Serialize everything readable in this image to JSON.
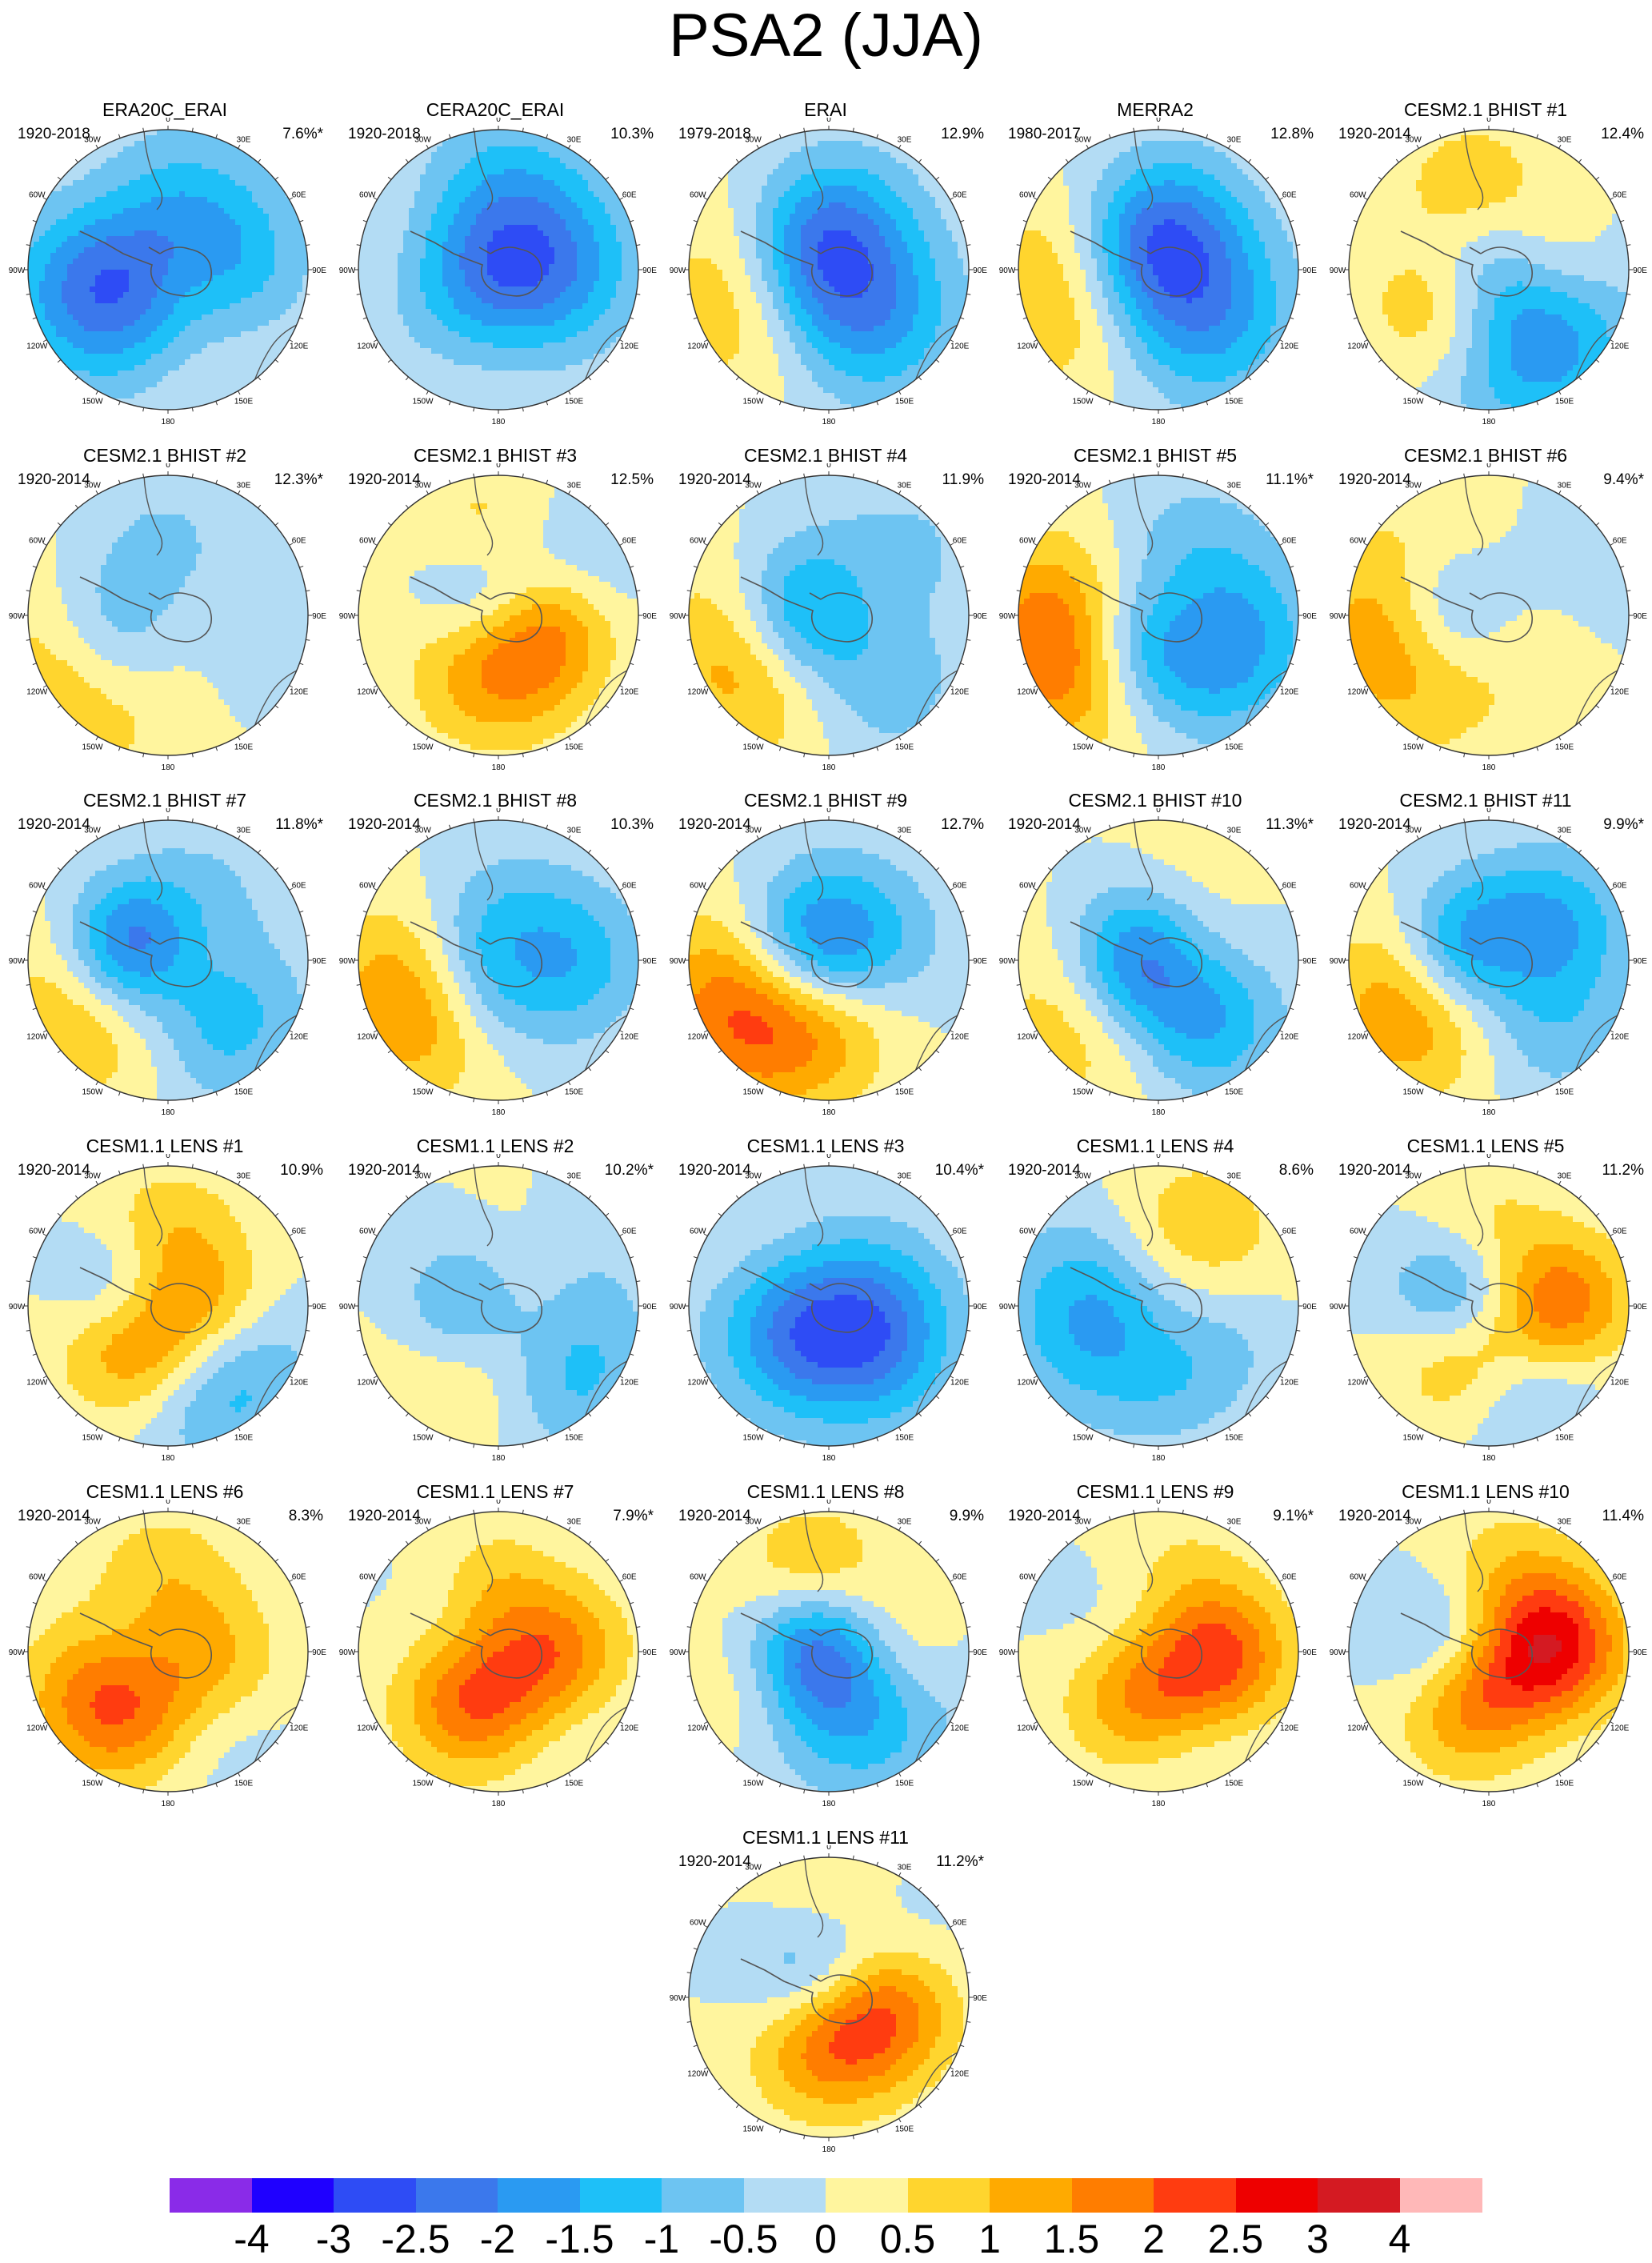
{
  "title": "PSA2 (JJA)",
  "panels": [
    {
      "title": "ERA20C_ERAI",
      "period": "1920-2018",
      "variance": "7.6%*"
    },
    {
      "title": "CERA20C_ERAI",
      "period": "1920-2018",
      "variance": "10.3%"
    },
    {
      "title": "ERAI",
      "period": "1979-2018",
      "variance": "12.9%"
    },
    {
      "title": "MERRA2",
      "period": "1980-2017",
      "variance": "12.8%"
    },
    {
      "title": "CESM2.1 BHIST #1",
      "period": "1920-2014",
      "variance": "12.4%"
    },
    {
      "title": "CESM2.1 BHIST #2",
      "period": "1920-2014",
      "variance": "12.3%*"
    },
    {
      "title": "CESM2.1 BHIST #3",
      "period": "1920-2014",
      "variance": "12.5%"
    },
    {
      "title": "CESM2.1 BHIST #4",
      "period": "1920-2014",
      "variance": "11.9%"
    },
    {
      "title": "CESM2.1 BHIST #5",
      "period": "1920-2014",
      "variance": "11.1%*"
    },
    {
      "title": "CESM2.1 BHIST #6",
      "period": "1920-2014",
      "variance": "9.4%*"
    },
    {
      "title": "CESM2.1 BHIST #7",
      "period": "1920-2014",
      "variance": "11.8%*"
    },
    {
      "title": "CESM2.1 BHIST #8",
      "period": "1920-2014",
      "variance": "10.3%"
    },
    {
      "title": "CESM2.1 BHIST #9",
      "period": "1920-2014",
      "variance": "12.7%"
    },
    {
      "title": "CESM2.1 BHIST #10",
      "period": "1920-2014",
      "variance": "11.3%*"
    },
    {
      "title": "CESM2.1 BHIST #11",
      "period": "1920-2014",
      "variance": "9.9%*"
    },
    {
      "title": "CESM1.1 LENS #1",
      "period": "1920-2014",
      "variance": "10.9%"
    },
    {
      "title": "CESM1.1 LENS #2",
      "period": "1920-2014",
      "variance": "10.2%*"
    },
    {
      "title": "CESM1.1 LENS #3",
      "period": "1920-2014",
      "variance": "10.4%*"
    },
    {
      "title": "CESM1.1 LENS #4",
      "period": "1920-2014",
      "variance": "8.6%"
    },
    {
      "title": "CESM1.1 LENS #5",
      "period": "1920-2014",
      "variance": "11.2%"
    },
    {
      "title": "CESM1.1 LENS #6",
      "period": "1920-2014",
      "variance": "8.3%"
    },
    {
      "title": "CESM1.1 LENS #7",
      "period": "1920-2014",
      "variance": "7.9%*"
    },
    {
      "title": "CESM1.1 LENS #8",
      "period": "1920-2014",
      "variance": "9.9%"
    },
    {
      "title": "CESM1.1 LENS #9",
      "period": "1920-2014",
      "variance": "9.1%*"
    },
    {
      "title": "CESM1.1 LENS #10",
      "period": "1920-2014",
      "variance": "11.4%"
    },
    {
      "title": "CESM1.1 LENS #11",
      "period": "1920-2014",
      "variance": "11.2%*"
    }
  ],
  "map_labels": {
    "lon_0": "0",
    "lon_30w": "30W",
    "lon_30e": "30E",
    "lon_60w": "60W",
    "lon_60e": "60E",
    "lon_90w": "90W",
    "lon_90e": "90E",
    "lon_120w": "120W",
    "lon_120e": "120E",
    "lon_150w": "150W",
    "lon_150e": "150E",
    "lon_180": "180"
  },
  "colorbar": {
    "colors": [
      "#8a2be8",
      "#1f00ff",
      "#2e4cf5",
      "#3b78ec",
      "#2a9af2",
      "#1ec0f8",
      "#6dc4f2",
      "#b3dcf4",
      "#fff59e",
      "#ffd52e",
      "#ffaa00",
      "#ff7d00",
      "#ff3c10",
      "#ee0000",
      "#d41a22",
      "#ffb8b8"
    ],
    "labels": [
      "-4",
      "-3",
      "-2.5",
      "-2",
      "-1.5",
      "-1",
      "-0.5",
      "0",
      "0.5",
      "1",
      "1.5",
      "2",
      "2.5",
      "3",
      "4"
    ]
  }
}
